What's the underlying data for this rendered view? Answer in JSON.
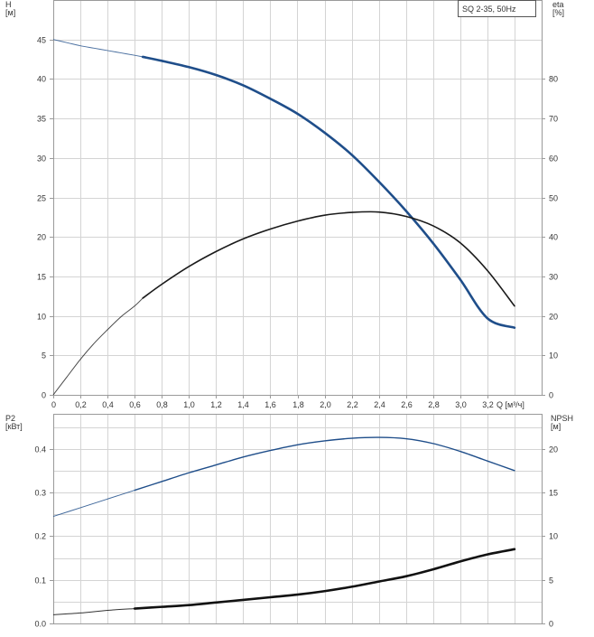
{
  "colors": {
    "head": "#1f4e8a",
    "efficiency": "#1a1a1a",
    "power": "#1f4e8a",
    "npsh": "#111111"
  },
  "chart_data": [
    {
      "type": "line",
      "title": "",
      "legend_label": "SQ 2-35, 50Hz",
      "legend_position": "top-right",
      "grid": true,
      "xlabel": "Q [м³/ч]",
      "xlim": [
        0,
        3.6
      ],
      "x_ticks": [
        "0",
        "0,2",
        "0,4",
        "0,6",
        "0,8",
        "1,0",
        "1,2",
        "1,4",
        "1,6",
        "1,8",
        "2,0",
        "2,2",
        "2,4",
        "2,6",
        "2,8",
        "3,0",
        "3,2"
      ],
      "ylabel": "H\n[м]",
      "ylim": [
        0,
        50
      ],
      "y_ticks": [
        "0",
        "5",
        "10",
        "15",
        "20",
        "25",
        "30",
        "35",
        "40",
        "45"
      ],
      "y2label": "eta\n[%]",
      "y2lim": [
        0,
        100
      ],
      "y2_ticks": [
        "0",
        "10",
        "20",
        "30",
        "40",
        "50",
        "60",
        "70",
        "80"
      ],
      "series": [
        {
          "axis": "left",
          "x": [
            0,
            0.1,
            0.2,
            0.3,
            0.4,
            0.5,
            0.6,
            0.66,
            0.8,
            1.0,
            1.2,
            1.4,
            1.6,
            1.8,
            2.0,
            2.2,
            2.4,
            2.6,
            2.8,
            3.0,
            3.2,
            3.4
          ],
          "values": [
            45.0,
            44.6,
            44.2,
            43.9,
            43.6,
            43.3,
            43.0,
            42.8,
            42.3,
            41.5,
            40.5,
            39.2,
            37.5,
            35.6,
            33.2,
            30.4,
            27.0,
            23.3,
            19.2,
            14.6,
            9.7,
            8.5
          ]
        },
        {
          "axis": "right",
          "x": [
            0,
            0.1,
            0.2,
            0.3,
            0.4,
            0.5,
            0.6,
            0.66,
            0.8,
            1.0,
            1.2,
            1.4,
            1.6,
            1.8,
            2.0,
            2.2,
            2.4,
            2.6,
            2.8,
            3.0,
            3.2,
            3.4
          ],
          "values": [
            0,
            4.5,
            9.0,
            13.0,
            16.5,
            19.8,
            22.5,
            24.5,
            28.0,
            32.5,
            36.3,
            39.5,
            42.0,
            44.0,
            45.5,
            46.2,
            46.3,
            45.2,
            42.8,
            38.5,
            31.5,
            22.5
          ]
        }
      ]
    },
    {
      "type": "line",
      "title": "",
      "grid": true,
      "xlim": [
        0,
        3.6
      ],
      "ylabel": "P2\n[кВт]",
      "ylim": [
        0,
        0.48
      ],
      "y_ticks": [
        "0.0",
        "0.1",
        "0.2",
        "0.3",
        "0.4"
      ],
      "y2label": "NPSH\n[м]",
      "y2lim": [
        0,
        24
      ],
      "y2_ticks": [
        "0",
        "5",
        "10",
        "15",
        "20"
      ],
      "series": [
        {
          "axis": "left",
          "x": [
            0,
            0.2,
            0.4,
            0.6,
            0.8,
            1.0,
            1.2,
            1.4,
            1.6,
            1.8,
            2.0,
            2.2,
            2.4,
            2.6,
            2.8,
            3.0,
            3.2,
            3.4
          ],
          "values": [
            0.245,
            0.265,
            0.285,
            0.305,
            0.325,
            0.345,
            0.363,
            0.381,
            0.396,
            0.409,
            0.418,
            0.424,
            0.426,
            0.423,
            0.412,
            0.394,
            0.372,
            0.35
          ]
        },
        {
          "axis": "right",
          "x": [
            0,
            0.2,
            0.4,
            0.6,
            0.8,
            1.0,
            1.2,
            1.4,
            1.6,
            1.8,
            2.0,
            2.2,
            2.4,
            2.6,
            2.8,
            3.0,
            3.2,
            3.4
          ],
          "values": [
            1.0,
            1.2,
            1.5,
            1.7,
            1.9,
            2.1,
            2.4,
            2.7,
            3.0,
            3.3,
            3.7,
            4.2,
            4.8,
            5.4,
            6.2,
            7.1,
            7.9,
            8.5
          ]
        }
      ]
    }
  ]
}
